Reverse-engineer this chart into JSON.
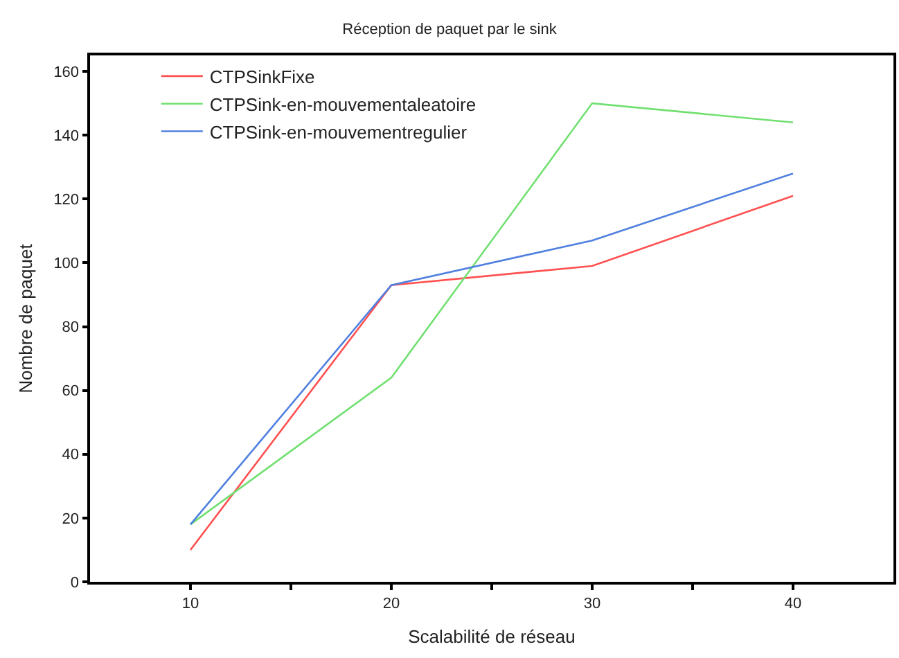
{
  "chart_data": {
    "type": "line",
    "title": "Réception de paquet par le sink",
    "xlabel": "Scalabilité de réseau",
    "ylabel": "Nombre de paquet",
    "x": [
      10,
      20,
      30,
      40
    ],
    "series": [
      {
        "name": "CTPSinkFixe",
        "color": "#ff5050",
        "values": [
          10,
          93,
          99,
          121
        ]
      },
      {
        "name": "CTPSink-en-mouvementaleatoire",
        "color": "#70e070",
        "values": [
          18,
          64,
          150,
          144
        ]
      },
      {
        "name": "CTPSink-en-mouvementregulier",
        "color": "#5080e0",
        "values": [
          18,
          93,
          107,
          128
        ]
      }
    ],
    "xlim": [
      5,
      45
    ],
    "xticks": [
      10,
      {
        "value": 15,
        "label": null
      },
      20,
      {
        "value": 25,
        "label": null
      },
      30,
      {
        "value": 35,
        "label": null
      },
      40
    ],
    "ylim": [
      0,
      165
    ],
    "yticks": [
      0,
      20,
      40,
      60,
      80,
      100,
      120,
      140,
      160
    ],
    "grid": false,
    "legend": "top left",
    "marker": "none",
    "line_style": "solid"
  }
}
